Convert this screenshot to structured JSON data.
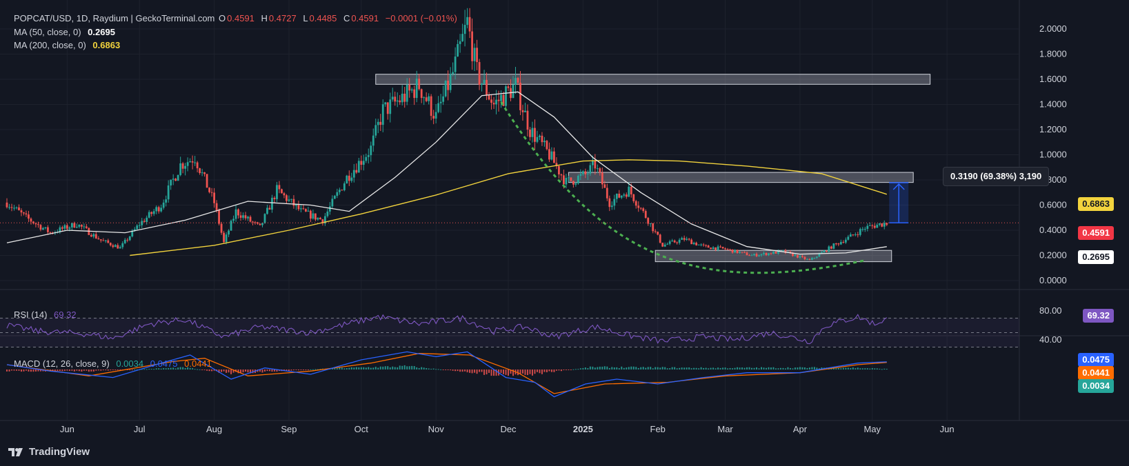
{
  "header": {
    "symbol": "POPCAT/USD, 1D, Raydium | GeckoTerminal.com",
    "open_label": "O",
    "open": "0.4591",
    "high_label": "H",
    "high": "0.4727",
    "low_label": "L",
    "low": "0.4485",
    "close_label": "C",
    "close": "0.4591",
    "change": "−0.0001 (−0.01%)"
  },
  "indicators": {
    "ma50_label": "MA (50, close, 0)",
    "ma50_value": "0.2695",
    "ma200_label": "MA (200, close, 0)",
    "ma200_value": "0.6863",
    "rsi_label": "RSI (14)",
    "rsi_value": "69.32",
    "macd_label": "MACD (12, 26, close, 9)",
    "macd_hist": "0.0034",
    "macd_line": "0.0475",
    "macd_signal": "0.0441"
  },
  "colors": {
    "background": "#131722",
    "up": "#26a69a",
    "down": "#ef5350",
    "ma50": "#e8e8e8",
    "ma200": "#f2d33d",
    "rsi": "#7e57c2",
    "macd": "#2962ff",
    "signal": "#ff6d00",
    "arc": "#4caf50",
    "measure": "#2962ff"
  },
  "price_tags": {
    "ma200": "0.6863",
    "last": "0.4591",
    "ma50": "0.2695",
    "rsi": "69.32",
    "macd_line": "0.0475",
    "macd_signal": "0.0441",
    "macd_hist": "0.0034"
  },
  "measure": {
    "label": "0.3190 (69.38%) 3,190"
  },
  "brand": "TradingView",
  "chart_data": {
    "type": "candlestick",
    "x_axis": {
      "ticks": [
        "Jun",
        "Jul",
        "Aug",
        "Sep",
        "Oct",
        "Nov",
        "Dec",
        "2025",
        "Feb",
        "Mar",
        "Apr",
        "May",
        "Jun"
      ]
    },
    "y_axis": {
      "ticks": [
        "2.0000",
        "1.8000",
        "1.6000",
        "1.4000",
        "1.2000",
        "1.0000",
        "0.8000",
        "0.6000",
        "0.4000",
        "0.2000",
        "0.0000"
      ],
      "ylim": [
        -0.05,
        2.2
      ]
    },
    "rsi_axis": {
      "ticks": [
        "80.00",
        "40.00"
      ]
    },
    "price_path": [
      [
        "2024-05-07",
        0.62
      ],
      [
        "2024-05-15",
        0.5
      ],
      [
        "2024-05-25",
        0.38
      ],
      [
        "2024-06-05",
        0.45
      ],
      [
        "2024-06-15",
        0.32
      ],
      [
        "2024-06-23",
        0.26
      ],
      [
        "2024-07-01",
        0.45
      ],
      [
        "2024-07-10",
        0.6
      ],
      [
        "2024-07-18",
        0.92
      ],
      [
        "2024-07-24",
        0.98
      ],
      [
        "2024-08-01",
        0.62
      ],
      [
        "2024-08-05",
        0.3
      ],
      [
        "2024-08-10",
        0.55
      ],
      [
        "2024-08-20",
        0.42
      ],
      [
        "2024-08-27",
        0.72
      ],
      [
        "2024-09-06",
        0.55
      ],
      [
        "2024-09-15",
        0.48
      ],
      [
        "2024-09-25",
        0.82
      ],
      [
        "2024-10-05",
        1.05
      ],
      [
        "2024-10-10",
        1.35
      ],
      [
        "2024-10-18",
        1.45
      ],
      [
        "2024-10-25",
        1.55
      ],
      [
        "2024-11-01",
        1.3
      ],
      [
        "2024-11-08",
        1.65
      ],
      [
        "2024-11-14",
        2.05
      ],
      [
        "2024-11-18",
        1.65
      ],
      [
        "2024-11-25",
        1.4
      ],
      [
        "2024-12-04",
        1.55
      ],
      [
        "2024-12-10",
        1.2
      ],
      [
        "2024-12-18",
        1.0
      ],
      [
        "2024-12-25",
        0.78
      ],
      [
        "2025-01-02",
        0.84
      ],
      [
        "2025-01-06",
        0.92
      ],
      [
        "2025-01-12",
        0.62
      ],
      [
        "2025-01-20",
        0.72
      ],
      [
        "2025-01-28",
        0.48
      ],
      [
        "2025-02-03",
        0.28
      ],
      [
        "2025-02-12",
        0.33
      ],
      [
        "2025-02-20",
        0.27
      ],
      [
        "2025-03-01",
        0.25
      ],
      [
        "2025-03-12",
        0.2
      ],
      [
        "2025-03-25",
        0.23
      ],
      [
        "2025-04-05",
        0.16
      ],
      [
        "2025-04-15",
        0.28
      ],
      [
        "2025-04-22",
        0.35
      ],
      [
        "2025-04-28",
        0.42
      ],
      [
        "2025-05-07",
        0.4591
      ]
    ],
    "ma50": [
      [
        "2024-05-07",
        0.3
      ],
      [
        "2024-06-01",
        0.4
      ],
      [
        "2024-06-25",
        0.38
      ],
      [
        "2024-07-20",
        0.48
      ],
      [
        "2024-08-15",
        0.63
      ],
      [
        "2024-09-10",
        0.6
      ],
      [
        "2024-09-26",
        0.55
      ],
      [
        "2024-10-15",
        0.82
      ],
      [
        "2024-11-01",
        1.1
      ],
      [
        "2024-11-20",
        1.47
      ],
      [
        "2024-12-05",
        1.5
      ],
      [
        "2024-12-20",
        1.3
      ],
      [
        "2025-01-05",
        0.98
      ],
      [
        "2025-01-25",
        0.7
      ],
      [
        "2025-02-15",
        0.45
      ],
      [
        "2025-03-10",
        0.27
      ],
      [
        "2025-04-01",
        0.21
      ],
      [
        "2025-04-20",
        0.22
      ],
      [
        "2025-05-07",
        0.2695
      ]
    ],
    "ma200": [
      [
        "2024-06-27",
        0.2
      ],
      [
        "2024-08-01",
        0.28
      ],
      [
        "2024-09-01",
        0.4
      ],
      [
        "2024-10-01",
        0.53
      ],
      [
        "2024-11-01",
        0.68
      ],
      [
        "2024-12-01",
        0.85
      ],
      [
        "2025-01-01",
        0.95
      ],
      [
        "2025-01-20",
        0.96
      ],
      [
        "2025-02-10",
        0.95
      ],
      [
        "2025-03-10",
        0.91
      ],
      [
        "2025-04-10",
        0.85
      ],
      [
        "2025-05-07",
        0.6863
      ]
    ],
    "zones": [
      {
        "from": "2024-10-07",
        "to": "2025-05-25",
        "low": 1.56,
        "high": 1.64
      },
      {
        "from": "2024-12-26",
        "to": "2025-05-18",
        "low": 0.78,
        "high": 0.86
      },
      {
        "from": "2025-01-31",
        "to": "2025-05-09",
        "low": 0.15,
        "high": 0.24
      }
    ],
    "measure": {
      "date": "2025-05-12",
      "from": 0.4591,
      "to": 0.7781,
      "change": "0.3190",
      "percent": "69.38%",
      "ticks": "3,190"
    },
    "rsi": [
      [
        "2024-05-07",
        60
      ],
      [
        "2024-05-20",
        52
      ],
      [
        "2024-06-10",
        48
      ],
      [
        "2024-06-20",
        42
      ],
      [
        "2024-07-05",
        62
      ],
      [
        "2024-07-20",
        68
      ],
      [
        "2024-08-05",
        44
      ],
      [
        "2024-08-20",
        58
      ],
      [
        "2024-09-10",
        50
      ],
      [
        "2024-10-08",
        72
      ],
      [
        "2024-10-25",
        62
      ],
      [
        "2024-11-12",
        70
      ],
      [
        "2024-11-25",
        52
      ],
      [
        "2024-12-08",
        58
      ],
      [
        "2024-12-20",
        44
      ],
      [
        "2025-01-06",
        58
      ],
      [
        "2025-01-20",
        46
      ],
      [
        "2025-02-03",
        38
      ],
      [
        "2025-02-20",
        44
      ],
      [
        "2025-03-05",
        40
      ],
      [
        "2025-03-20",
        50
      ],
      [
        "2025-04-05",
        38
      ],
      [
        "2025-04-12",
        60
      ],
      [
        "2025-04-25",
        72
      ],
      [
        "2025-05-02",
        62
      ],
      [
        "2025-05-07",
        69.32
      ]
    ],
    "macd": [
      [
        "2024-05-07",
        0.03
      ],
      [
        "2024-05-25",
        -0.01
      ],
      [
        "2024-06-20",
        -0.05
      ],
      [
        "2024-07-10",
        0.04
      ],
      [
        "2024-07-22",
        0.09
      ],
      [
        "2024-08-08",
        -0.06
      ],
      [
        "2024-08-22",
        0.01
      ],
      [
        "2024-09-10",
        -0.03
      ],
      [
        "2024-10-01",
        0.06
      ],
      [
        "2024-10-20",
        0.11
      ],
      [
        "2024-11-01",
        0.08
      ],
      [
        "2024-11-14",
        0.11
      ],
      [
        "2024-11-30",
        -0.05
      ],
      [
        "2024-12-12",
        -0.08
      ],
      [
        "2024-12-20",
        -0.2
      ],
      [
        "2025-01-02",
        -0.09
      ],
      [
        "2025-01-15",
        -0.06
      ],
      [
        "2025-02-01",
        -0.09
      ],
      [
        "2025-02-20",
        -0.05
      ],
      [
        "2025-03-10",
        -0.02
      ],
      [
        "2025-04-01",
        -0.02
      ],
      [
        "2025-04-25",
        0.04
      ],
      [
        "2025-05-07",
        0.0475
      ]
    ],
    "macd_signal": [
      [
        "2024-05-07",
        0.03
      ],
      [
        "2024-06-10",
        -0.04
      ],
      [
        "2024-07-15",
        0.05
      ],
      [
        "2024-07-28",
        0.07
      ],
      [
        "2024-08-15",
        -0.04
      ],
      [
        "2024-09-10",
        -0.01
      ],
      [
        "2024-10-05",
        0.04
      ],
      [
        "2024-10-25",
        0.1
      ],
      [
        "2024-11-15",
        0.09
      ],
      [
        "2024-12-05",
        -0.02
      ],
      [
        "2024-12-20",
        -0.15
      ],
      [
        "2025-01-10",
        -0.09
      ],
      [
        "2025-02-05",
        -0.08
      ],
      [
        "2025-03-01",
        -0.04
      ],
      [
        "2025-04-01",
        -0.02
      ],
      [
        "2025-04-25",
        0.03
      ],
      [
        "2025-05-07",
        0.0441
      ]
    ],
    "macd_histogram": [
      [
        "2024-06-10",
        -0.01
      ],
      [
        "2024-07-20",
        0.012
      ],
      [
        "2024-08-08",
        -0.025
      ],
      [
        "2024-09-20",
        0.008
      ],
      [
        "2024-10-20",
        0.02
      ],
      [
        "2024-11-25",
        -0.03
      ],
      [
        "2024-12-10",
        -0.03
      ],
      [
        "2025-01-05",
        0.015
      ],
      [
        "2025-02-20",
        0.01
      ],
      [
        "2025-04-20",
        0.012
      ],
      [
        "2025-05-07",
        0.0034
      ]
    ]
  }
}
